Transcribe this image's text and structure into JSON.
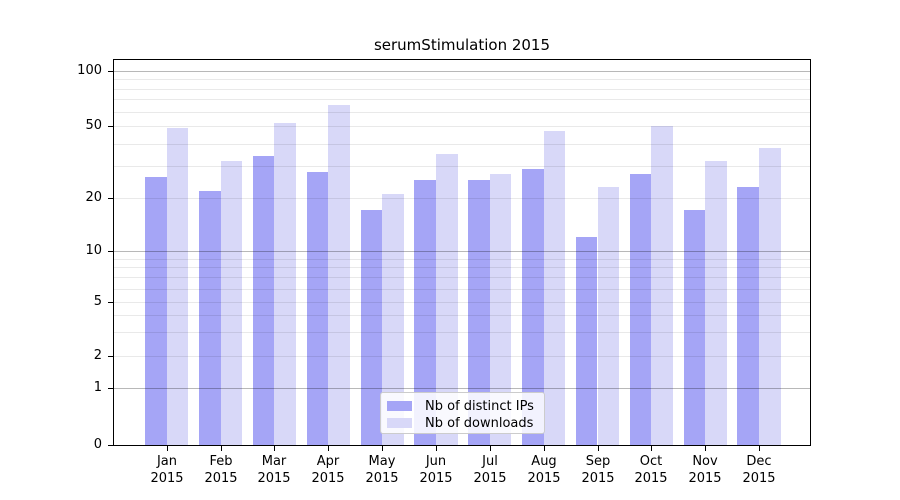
{
  "title": "serumStimulation 2015",
  "chart_data": {
    "type": "bar",
    "title": "serumStimulation 2015",
    "categories": [
      "Jan",
      "Feb",
      "Mar",
      "Apr",
      "May",
      "Jun",
      "Jul",
      "Aug",
      "Sep",
      "Oct",
      "Nov",
      "Dec"
    ],
    "category_year": "2015",
    "series": [
      {
        "name": "Nb of distinct IPs",
        "color": "#a5a5f6",
        "values": [
          26,
          22,
          34,
          28,
          17,
          25,
          25,
          29,
          12,
          27,
          17,
          23
        ]
      },
      {
        "name": "Nb of downloads",
        "color": "#d8d8f8",
        "values": [
          49,
          32,
          52,
          65,
          21,
          35,
          27,
          47,
          23,
          50,
          32,
          38
        ]
      }
    ],
    "xlabel": "",
    "ylabel": "",
    "y_tick_labels": [
      "0",
      "1",
      "2",
      "5",
      "10",
      "20",
      "50",
      "100"
    ],
    "y_tick_values": [
      0,
      1,
      2,
      5,
      10,
      20,
      50,
      100
    ],
    "y_scale": "log (symlog-style, zero shown at baseline)",
    "ylim": [
      0,
      115
    ],
    "grid": "horizontal; light minor lines at 2-9, 20-90; darker major lines at 1, 10, 100; drawn over bars",
    "legend_position": "lower center inside plot"
  }
}
